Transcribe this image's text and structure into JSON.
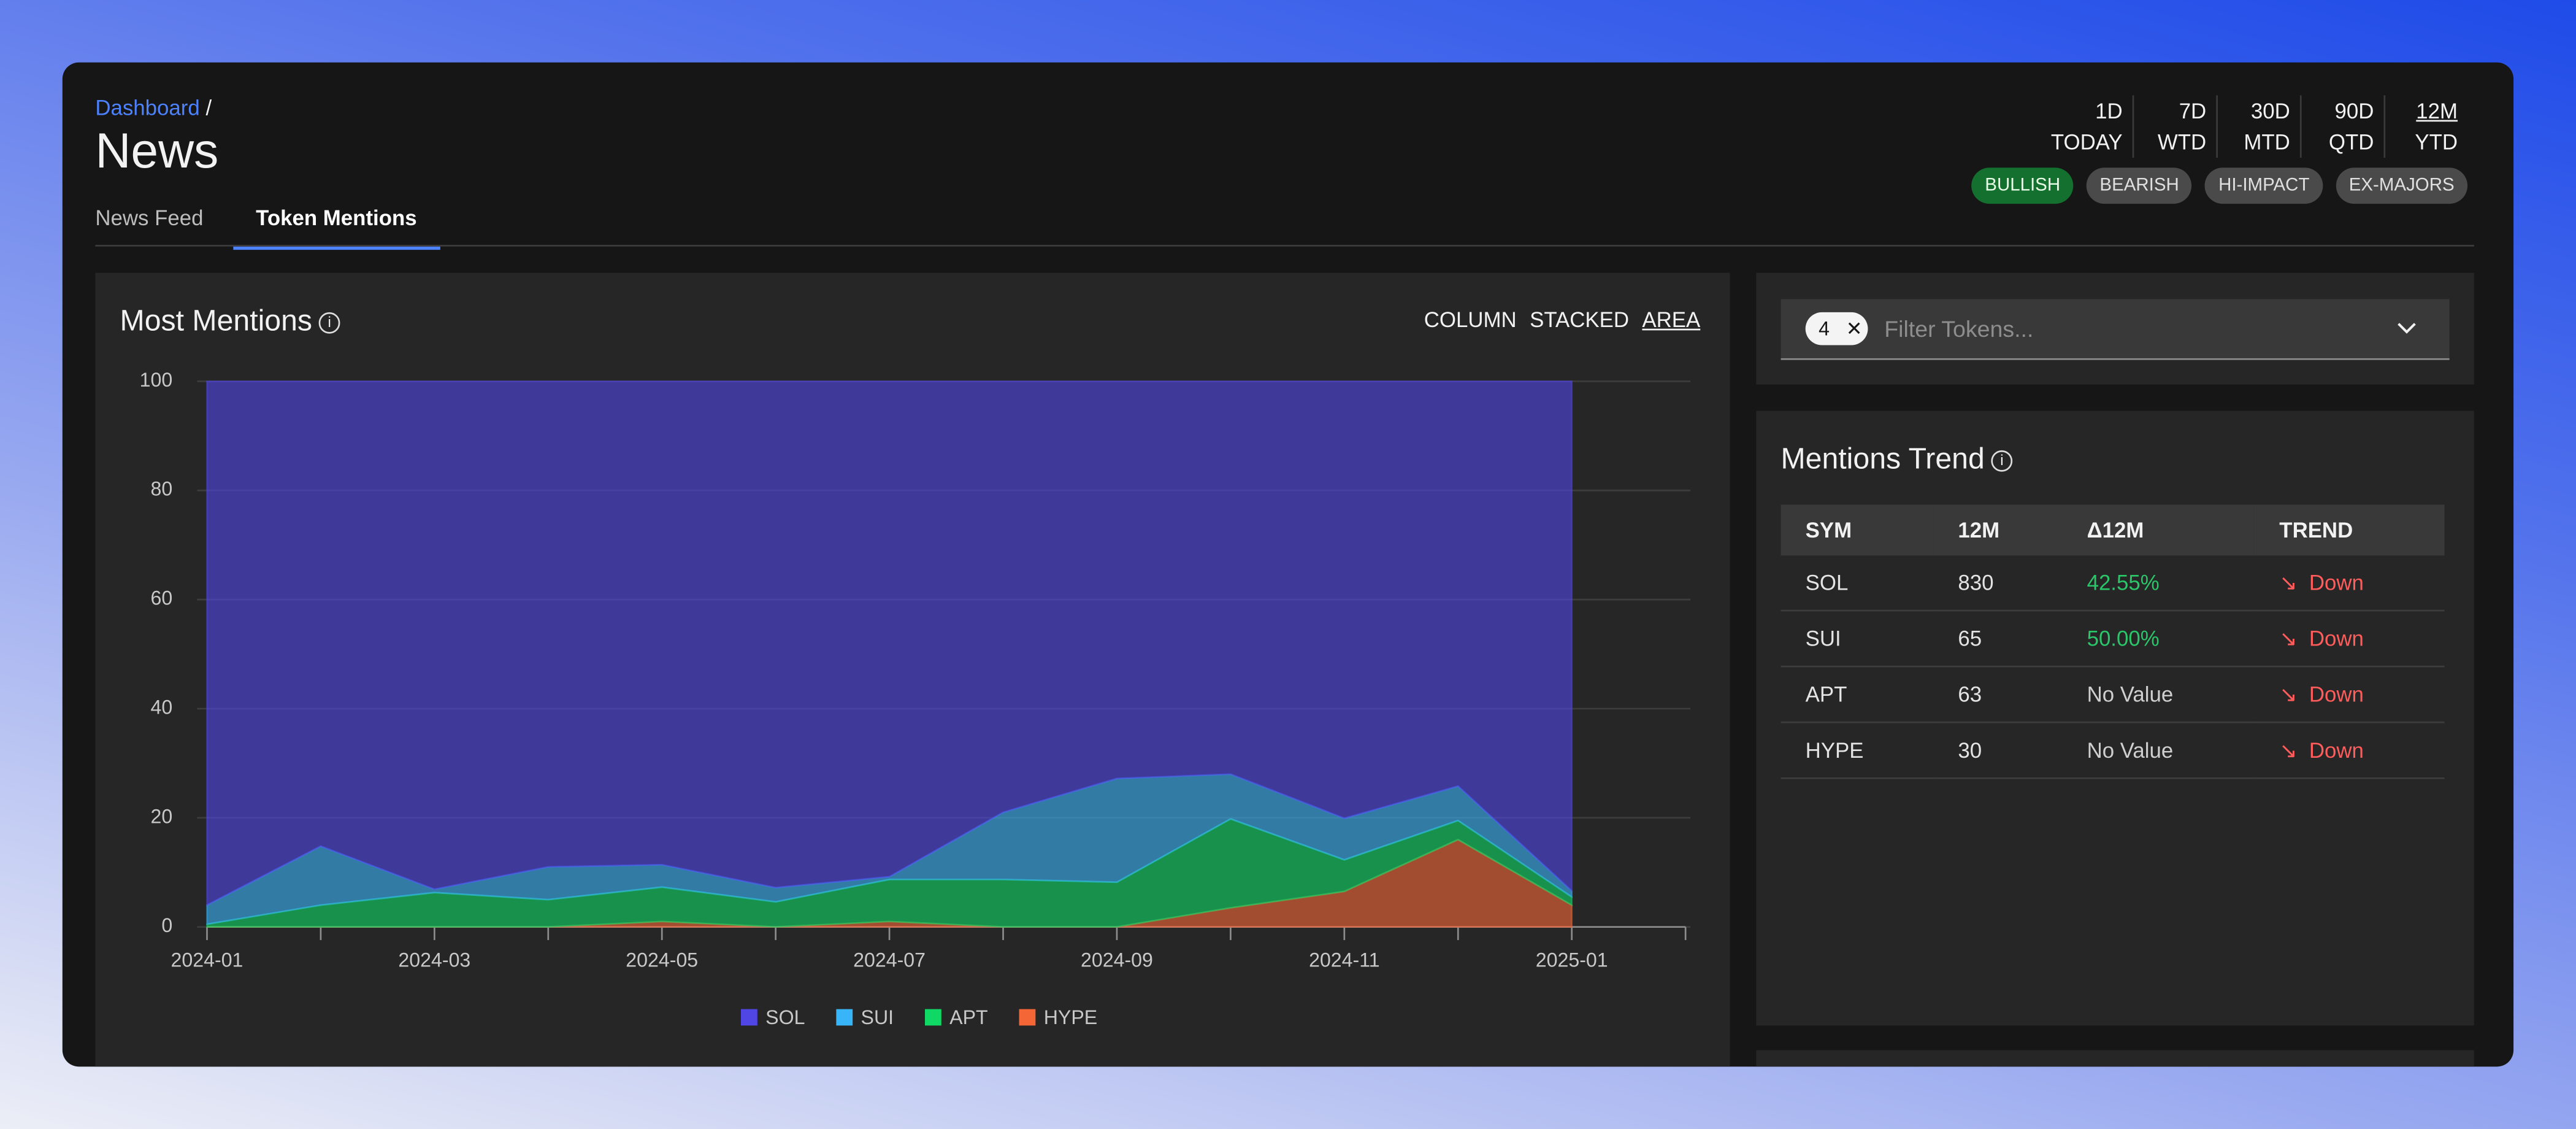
{
  "breadcrumb": {
    "link": "Dashboard",
    "separator": "/"
  },
  "title": "News",
  "tabs": [
    "News Feed",
    "Token Mentions"
  ],
  "periods": [
    {
      "code": "1D",
      "name": "TODAY"
    },
    {
      "code": "7D",
      "name": "WTD"
    },
    {
      "code": "30D",
      "name": "MTD"
    },
    {
      "code": "90D",
      "name": "QTD"
    },
    {
      "code": "12M",
      "name": "YTD"
    }
  ],
  "filters": [
    "BULLISH",
    "BEARISH",
    "HI-IMPACT",
    "EX-MAJORS"
  ],
  "chart_modes": [
    "COLUMN",
    "STACKED",
    "AREA"
  ],
  "token_filter": {
    "count": "4",
    "placeholder": "Filter Tokens..."
  },
  "chart_data": {
    "type": "area",
    "title": "Most Mentions",
    "categories": [
      "2024-01",
      null,
      "2024-03",
      null,
      "2024-05",
      null,
      "2024-07",
      null,
      "2024-09",
      null,
      "2024-11",
      null,
      "2025-01",
      null
    ],
    "series": [
      {
        "name": "SOL",
        "color": "#5046e6",
        "values": [
          96,
          85.2,
          93.1,
          89,
          88.6,
          92.8,
          90.8,
          79,
          72.8,
          72,
          80.1,
          74.2,
          93.4,
          null
        ]
      },
      {
        "name": "SUI",
        "color": "#38b4f8",
        "values": [
          3.5,
          10.8,
          0.6,
          6,
          4.1,
          2.6,
          0.5,
          12.3,
          19,
          8.2,
          7.6,
          6.3,
          1.1,
          null
        ]
      },
      {
        "name": "APT",
        "color": "#0fd865",
        "values": [
          0.5,
          4,
          6.3,
          5,
          6.3,
          4.6,
          7.7,
          8.7,
          8.2,
          16.3,
          5.8,
          3.5,
          1.5,
          null
        ]
      },
      {
        "name": "HYPE",
        "color": "#f56637",
        "values": [
          0,
          0,
          0,
          0,
          1,
          0,
          1,
          0,
          0,
          3.5,
          6.5,
          16,
          4,
          null
        ]
      }
    ],
    "ylim": [
      0,
      100
    ],
    "yticks": [
      0,
      20,
      40,
      60,
      80,
      100
    ],
    "grid": true,
    "stacked": true
  },
  "trend_table": {
    "title": "Mentions Trend",
    "columns": [
      "SYM",
      "12M",
      "Δ12M",
      "TREND"
    ],
    "rows": [
      [
        "SOL",
        "830",
        "42.55%",
        "Down"
      ],
      [
        "SUI",
        "65",
        "50.00%",
        "Down"
      ],
      [
        "APT",
        "63",
        "No Value",
        "Down"
      ],
      [
        "HYPE",
        "30",
        "No Value",
        "Down"
      ]
    ]
  }
}
